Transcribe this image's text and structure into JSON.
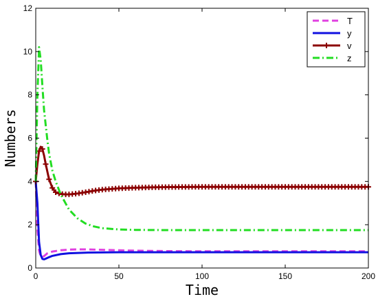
{
  "chart_data": {
    "type": "line",
    "title": "",
    "xlabel": "Time",
    "ylabel": "Numbers",
    "xlim": [
      0,
      200
    ],
    "ylim": [
      0,
      12
    ],
    "xticks": [
      "0",
      "50",
      "100",
      "150",
      "200"
    ],
    "yticks": [
      "0",
      "2",
      "4",
      "6",
      "8",
      "10",
      "12"
    ],
    "grid": false,
    "legend_position": "top-right",
    "series": [
      {
        "name": "T",
        "color": "#e040e0",
        "style": "dashed",
        "x": [
          0,
          1,
          2,
          3,
          4,
          5,
          7,
          10,
          15,
          20,
          25,
          30,
          40,
          50,
          60,
          80,
          100,
          120,
          150,
          200
        ],
        "y": [
          4.0,
          1.8,
          0.8,
          0.55,
          0.52,
          0.55,
          0.68,
          0.76,
          0.82,
          0.85,
          0.86,
          0.86,
          0.84,
          0.82,
          0.8,
          0.78,
          0.77,
          0.77,
          0.77,
          0.77
        ]
      },
      {
        "name": "y",
        "color": "#1010e0",
        "style": "solid",
        "x": [
          0,
          1,
          2,
          3,
          4,
          5,
          6,
          8,
          10,
          15,
          20,
          30,
          40,
          50,
          60,
          80,
          100,
          150,
          200
        ],
        "y": [
          4.0,
          3.0,
          1.2,
          0.6,
          0.42,
          0.4,
          0.43,
          0.5,
          0.56,
          0.64,
          0.68,
          0.71,
          0.72,
          0.73,
          0.73,
          0.73,
          0.73,
          0.73,
          0.73
        ]
      },
      {
        "name": "v",
        "color": "#8b0000",
        "style": "solid-plus",
        "x": [
          0,
          1,
          2,
          3,
          4,
          5,
          6,
          8,
          10,
          12,
          15,
          18,
          20,
          25,
          30,
          35,
          40,
          50,
          60,
          70,
          80,
          100,
          120,
          150,
          200
        ],
        "y": [
          4.0,
          4.8,
          5.4,
          5.6,
          5.5,
          5.2,
          4.8,
          4.1,
          3.7,
          3.5,
          3.42,
          3.4,
          3.4,
          3.44,
          3.5,
          3.57,
          3.62,
          3.68,
          3.71,
          3.73,
          3.74,
          3.75,
          3.75,
          3.75,
          3.75
        ]
      },
      {
        "name": "z",
        "color": "#22dd22",
        "style": "dash-dot",
        "x": [
          0,
          1,
          2,
          3,
          4,
          5,
          6,
          7,
          8,
          10,
          12,
          15,
          20,
          25,
          30,
          35,
          40,
          50,
          60,
          80,
          100,
          150,
          200
        ],
        "y": [
          4.0,
          8.0,
          10.2,
          9.6,
          8.4,
          7.3,
          6.6,
          5.9,
          5.3,
          4.5,
          4.0,
          3.4,
          2.7,
          2.3,
          2.05,
          1.92,
          1.84,
          1.78,
          1.76,
          1.75,
          1.75,
          1.75,
          1.75
        ]
      }
    ]
  }
}
